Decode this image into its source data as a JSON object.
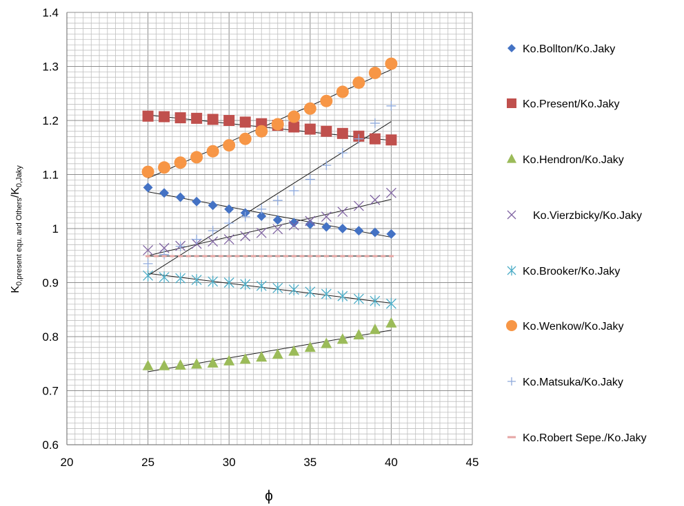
{
  "chart_data": {
    "type": "scatter",
    "xlabel": "ϕ",
    "ylabel": {
      "base": "K",
      "sub1": "0,present equ. and Others",
      "slash": "/K",
      "sub2": "0,Jaky"
    },
    "xlim": [
      20,
      45
    ],
    "ylim": [
      0.6,
      1.4
    ],
    "x_ticks": [
      "20",
      "25",
      "30",
      "35",
      "40",
      "45"
    ],
    "y_ticks": [
      "0.6",
      "0.7",
      "0.8",
      "0.9",
      "1",
      "1.1",
      "1.2",
      "1.3",
      "1.4"
    ],
    "grid": true,
    "legend_position": "right",
    "x": [
      25,
      26,
      27,
      28,
      29,
      30,
      31,
      32,
      33,
      34,
      35,
      36,
      37,
      38,
      39,
      40
    ],
    "series": [
      {
        "name": "Ko.Bollton/Ko.Jaky",
        "marker": "diamond",
        "color": "#4472C4",
        "values": [
          1.076,
          1.066,
          1.058,
          1.05,
          1.043,
          1.036,
          1.029,
          1.023,
          1.016,
          1.011,
          1.008,
          1.003,
          1.0,
          0.996,
          0.993,
          0.99
        ],
        "trend": [
          1.068,
          0.984
        ]
      },
      {
        "name": "Ko.Present/Ko.Jaky",
        "marker": "square",
        "color": "#C0504D",
        "values": [
          1.208,
          1.207,
          1.205,
          1.204,
          1.202,
          1.2,
          1.197,
          1.194,
          1.191,
          1.188,
          1.184,
          1.18,
          1.176,
          1.171,
          1.166,
          1.164
        ],
        "trend": [
          1.21,
          1.163
        ]
      },
      {
        "name": "Ko.Hendron/Ko.Jaky",
        "marker": "triangle",
        "color": "#9BBB59",
        "values": [
          0.746,
          0.746,
          0.747,
          0.749,
          0.751,
          0.755,
          0.758,
          0.762,
          0.767,
          0.773,
          0.78,
          0.787,
          0.795,
          0.803,
          0.813,
          0.825
        ],
        "trend": [
          0.735,
          0.812
        ]
      },
      {
        "name": "Ko.Vierzbicky/Ko.Jaky",
        "marker": "x",
        "color": "#8064A2",
        "values": [
          0.96,
          0.964,
          0.968,
          0.972,
          0.976,
          0.98,
          0.986,
          0.992,
          0.999,
          1.006,
          1.014,
          1.022,
          1.031,
          1.042,
          1.053,
          1.066
        ],
        "trend": [
          0.95,
          1.054
        ]
      },
      {
        "name": "Ko.Brooker/Ko.Jaky",
        "marker": "star",
        "color": "#4BACC6",
        "values": [
          0.913,
          0.91,
          0.908,
          0.905,
          0.902,
          0.9,
          0.897,
          0.894,
          0.89,
          0.887,
          0.883,
          0.879,
          0.875,
          0.87,
          0.866,
          0.861
        ],
        "trend": [
          0.917,
          0.862
        ]
      },
      {
        "name": "Ko.Wenkow/Ko.Jaky",
        "marker": "circle",
        "color": "#F79646",
        "values": [
          1.105,
          1.113,
          1.122,
          1.132,
          1.143,
          1.154,
          1.166,
          1.18,
          1.193,
          1.207,
          1.222,
          1.236,
          1.253,
          1.27,
          1.288,
          1.305
        ],
        "trend": [
          1.093,
          1.294
        ]
      },
      {
        "name": "Ko.Matsuka/Ko.Jaky",
        "marker": "plus",
        "color": "#8EA9DB",
        "values": [
          0.935,
          0.952,
          0.967,
          0.98,
          0.996,
          1.01,
          1.022,
          1.036,
          1.052,
          1.07,
          1.091,
          1.117,
          1.14,
          1.166,
          1.195,
          1.227
        ],
        "trend": [
          0.913,
          1.198
        ]
      },
      {
        "name": "Ko.Robert Sepe./Ko.Jaky",
        "marker": "dash",
        "color": "#E6A6A4",
        "values": [
          0.949,
          0.949,
          0.949,
          0.949,
          0.949,
          0.949,
          0.949,
          0.949,
          0.949,
          0.949,
          0.949,
          0.949,
          0.949,
          0.949,
          0.949,
          0.949
        ],
        "trend": [
          0.949,
          0.949
        ]
      }
    ]
  }
}
